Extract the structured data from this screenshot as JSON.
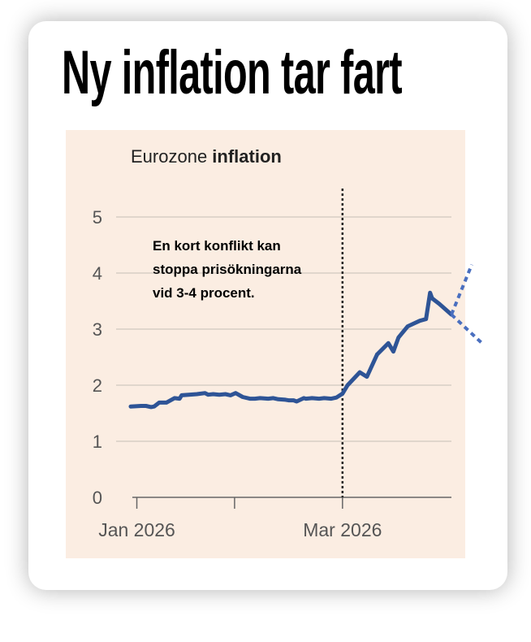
{
  "headline": "Ny inflation tar fart",
  "chart_data": {
    "type": "line",
    "title_regular": "Eurozone",
    "title_bold": "inflation",
    "annotation": [
      "En kort konflikt kan",
      "stoppa prisökningarna",
      "vid 3-4 procent."
    ],
    "y_ticks": [
      0,
      1,
      2,
      3,
      4,
      5
    ],
    "x_labels": [
      "Jan 2026",
      "Mar 2026"
    ],
    "ylim": [
      0,
      5.2
    ],
    "grid": true,
    "series": [
      {
        "color": "#2e5496",
        "x": [
          0.0,
          1.0,
          1.5,
          2.0,
          2.3,
          2.8,
          3.5,
          4.3,
          4.8,
          5.0,
          5.7,
          6.5,
          7.3,
          7.6,
          8.1,
          8.7,
          9.3,
          9.8,
          10.3,
          11.0,
          11.7,
          12.2,
          12.7,
          13.5,
          14.0,
          14.5,
          15.2,
          15.5,
          16.0,
          16.3,
          17.0,
          17.2,
          17.8,
          18.5,
          19.0,
          19.7,
          20.2,
          20.8,
          21.3,
          22.5,
          23.2,
          23.6,
          24.2
        ],
        "y": [
          1.62,
          1.63,
          1.63,
          1.61,
          1.62,
          1.69,
          1.69,
          1.77,
          1.76,
          1.82,
          1.83,
          1.84,
          1.86,
          1.83,
          1.84,
          1.83,
          1.84,
          1.82,
          1.86,
          1.79,
          1.76,
          1.76,
          1.77,
          1.76,
          1.77,
          1.75,
          1.74,
          1.73,
          1.73,
          1.71,
          1.77,
          1.76,
          1.77,
          1.76,
          1.77,
          1.76,
          1.78,
          1.85,
          2.0,
          2.23,
          2.15,
          2.31,
          2.55
        ]
      }
    ],
    "series_continued": [
      {
        "x": [
          24.2,
          25.3,
          25.8,
          26.3,
          27.2,
          27.8,
          28.4,
          29.0,
          29.4,
          29.6
        ],
        "y": [
          2.55,
          2.75,
          2.6,
          2.85,
          3.05,
          3.1,
          3.15,
          3.18,
          3.65,
          3.55
        ]
      },
      {
        "x": [
          29.6,
          30.3,
          31.5
        ],
        "y": [
          3.55,
          3.45,
          3.26
        ]
      }
    ],
    "scenario_lines": [
      {
        "x": [
          31.5,
          33.5
        ],
        "y": [
          3.26,
          4.15
        ]
      },
      {
        "x": [
          31.5,
          34.5
        ],
        "y": [
          3.26,
          2.75
        ]
      }
    ],
    "vline_x": 20.8,
    "xlim": [
      0,
      31.5
    ],
    "x_label_positions": [
      0.6,
      20.8
    ]
  }
}
